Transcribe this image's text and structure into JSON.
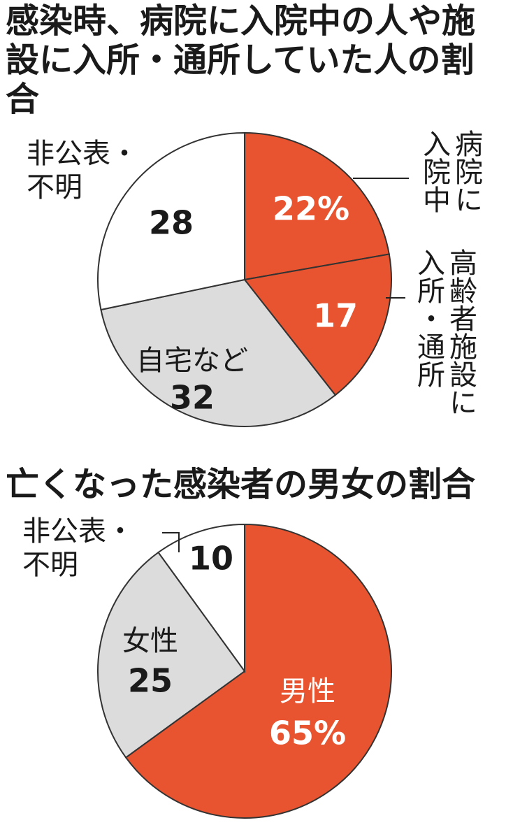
{
  "chart_data": [
    {
      "type": "pie",
      "title": "感染時、病院に入院中の人や施設に入所・通所していた人の割合",
      "categories": [
        "病院に入院中",
        "高齢者施設に入所・通所",
        "自宅など",
        "非公表・不明"
      ],
      "values": [
        22,
        17,
        32,
        28
      ],
      "value_labels": [
        "22%",
        "17",
        "32",
        "28"
      ],
      "colors": [
        "#e8542f",
        "#e8542f",
        "#dcdcdc",
        "#ffffff"
      ]
    },
    {
      "type": "pie",
      "title": "亡くなった感染者の男女の割合",
      "categories": [
        "男性",
        "女性",
        "非公表・不明"
      ],
      "values": [
        65,
        25,
        10
      ],
      "value_labels": [
        "65%",
        "25",
        "10"
      ],
      "colors": [
        "#e8542f",
        "#dcdcdc",
        "#ffffff"
      ]
    }
  ]
}
